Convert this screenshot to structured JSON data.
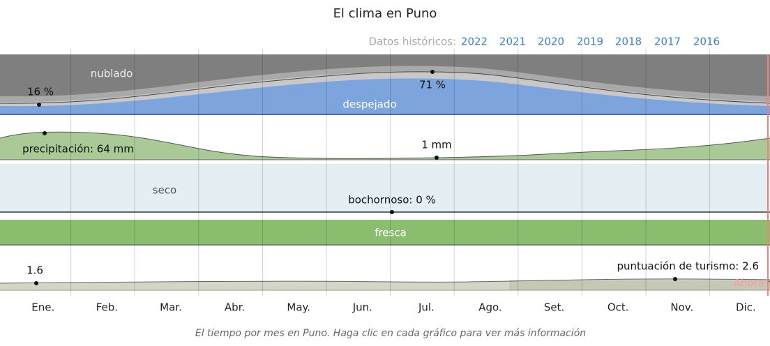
{
  "header": {
    "title": "El clima en Puno",
    "history_label": "Datos históricos:",
    "years": [
      "2022",
      "2021",
      "2020",
      "2019",
      "2018",
      "2017",
      "2016"
    ]
  },
  "bands": {
    "cloud": {
      "top_label": "nublado",
      "bottom_label": "despejado",
      "min_label": "16 %",
      "max_label": "71 %"
    },
    "precipitation": {
      "max_label": "precipitación: 64 mm",
      "min_label": "1 mm"
    },
    "humidity": {
      "label": "seco",
      "value_label": "bochornoso: 0 %"
    },
    "wind": {
      "label": "fresca"
    },
    "tourism": {
      "min_label": "1.6",
      "max_label": "puntuación de turismo: 2.6",
      "now_label": "Ahora"
    }
  },
  "months": [
    "Ene.",
    "Feb.",
    "Mar.",
    "Abr.",
    "May.",
    "Jun.",
    "Jul.",
    "Ago.",
    "Set.",
    "Oct.",
    "Nov.",
    "Dic."
  ],
  "caption": "El tiempo por mes en Puno. Haga clic en cada gráfico para ver más información"
}
